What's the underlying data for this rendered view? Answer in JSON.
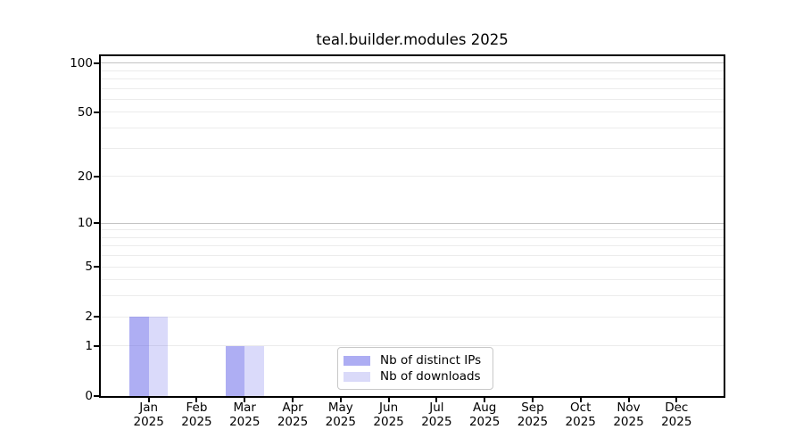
{
  "chart_data": {
    "type": "bar",
    "title": "teal.builder.modules 2025",
    "categories": [
      "Jan 2025",
      "Feb 2025",
      "Mar 2025",
      "Apr 2025",
      "May 2025",
      "Jun 2025",
      "Jul 2025",
      "Aug 2025",
      "Sep 2025",
      "Oct 2025",
      "Nov 2025",
      "Dec 2025"
    ],
    "x_tick_months": [
      "Jan",
      "Feb",
      "Mar",
      "Apr",
      "May",
      "Jun",
      "Jul",
      "Aug",
      "Sep",
      "Oct",
      "Nov",
      "Dec"
    ],
    "x_tick_year": "2025",
    "series": [
      {
        "name": "Nb of distinct IPs",
        "color_rgba": "rgba(85,85,230,0.48)",
        "swatch_color": "#adadf3",
        "values": [
          2,
          0,
          1,
          0,
          0,
          0,
          0,
          0,
          0,
          0,
          0,
          0
        ]
      },
      {
        "name": "Nb of downloads",
        "color_rgba": "rgba(85,85,230,0.22)",
        "swatch_color": "#dadaf9",
        "values": [
          2,
          0,
          1,
          0,
          0,
          0,
          0,
          0,
          0,
          0,
          0,
          0
        ]
      }
    ],
    "y_axis": {
      "scale": "log1p",
      "ylim": [
        0,
        110
      ],
      "tick_values": [
        0,
        1,
        2,
        5,
        10,
        20,
        50,
        100
      ],
      "tick_labels": [
        "0",
        "1",
        "2",
        "5",
        "10",
        "20",
        "50",
        "100"
      ],
      "minor_grid_values": [
        1,
        2,
        3,
        4,
        5,
        6,
        7,
        8,
        9,
        20,
        30,
        40,
        50,
        60,
        70,
        80,
        90
      ],
      "major_grid_values": [
        10,
        100
      ]
    },
    "legend": {
      "position": "lower center",
      "entries": [
        "Nb of distinct IPs",
        "Nb of downloads"
      ]
    },
    "grid": "on",
    "xlabel": "",
    "ylabel": ""
  }
}
